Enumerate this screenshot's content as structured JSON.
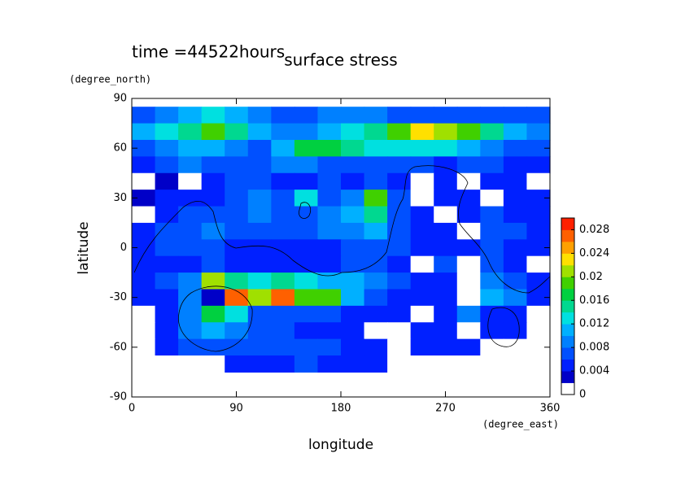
{
  "chart_data": {
    "type": "contour",
    "title": "surface stress",
    "annotation": "time =44522hours",
    "x_label": "longitude",
    "y_label": "latitude",
    "x_units": "(degree_east)",
    "y_units": "(degree_north)",
    "xlim": [
      0,
      360
    ],
    "ylim": [
      -90,
      90
    ],
    "xticks": [
      0,
      90,
      180,
      270,
      360
    ],
    "yticks": [
      90,
      60,
      30,
      0,
      -30,
      -60,
      -90
    ],
    "x": [
      10,
      30,
      50,
      70,
      90,
      110,
      130,
      150,
      170,
      190,
      210,
      230,
      250,
      270,
      290,
      310,
      330,
      350
    ],
    "y": [
      80,
      70,
      60,
      50,
      40,
      30,
      20,
      10,
      0,
      -10,
      -20,
      -30,
      -40,
      -50,
      -60,
      -70
    ],
    "z": [
      [
        0.006,
        0.008,
        0.01,
        0.012,
        0.01,
        0.008,
        0.006,
        0.006,
        0.008,
        0.008,
        0.008,
        0.006,
        0.006,
        0.006,
        0.006,
        0.006,
        0.006,
        0.006
      ],
      [
        0.01,
        0.012,
        0.014,
        0.018,
        0.014,
        0.01,
        0.008,
        0.008,
        0.01,
        0.012,
        0.014,
        0.018,
        0.022,
        0.02,
        0.018,
        0.014,
        0.01,
        0.008
      ],
      [
        0.006,
        0.008,
        0.01,
        0.01,
        0.008,
        0.006,
        0.01,
        0.016,
        0.016,
        0.014,
        0.012,
        0.012,
        0.012,
        0.012,
        0.01,
        0.008,
        0.006,
        0.006
      ],
      [
        0.004,
        0.006,
        0.008,
        0.006,
        0.006,
        0.006,
        0.008,
        0.008,
        0.006,
        0.006,
        0.006,
        0.006,
        0.006,
        0.004,
        0.006,
        0.006,
        0.004,
        0.004
      ],
      [
        0.001,
        0.003,
        0.001,
        0.004,
        0.006,
        0.006,
        0.004,
        0.004,
        0.006,
        0.004,
        0.006,
        0.004,
        0.001,
        0.004,
        0.001,
        0.004,
        0.004,
        0.001
      ],
      [
        0.003,
        0.004,
        0.004,
        0.004,
        0.006,
        0.008,
        0.006,
        0.012,
        0.006,
        0.008,
        0.018,
        0.006,
        0.001,
        0.004,
        0.004,
        0.001,
        0.004,
        0.004
      ],
      [
        0.001,
        0.004,
        0.006,
        0.006,
        0.006,
        0.008,
        0.006,
        0.006,
        0.008,
        0.01,
        0.014,
        0.006,
        0.004,
        0.001,
        0.004,
        0.006,
        0.004,
        0.004
      ],
      [
        0.004,
        0.006,
        0.006,
        0.008,
        0.006,
        0.006,
        0.006,
        0.006,
        0.008,
        0.008,
        0.01,
        0.006,
        0.004,
        0.004,
        0.001,
        0.006,
        0.006,
        0.004
      ],
      [
        0.004,
        0.006,
        0.006,
        0.006,
        0.004,
        0.004,
        0.004,
        0.004,
        0.004,
        0.006,
        0.006,
        0.006,
        0.004,
        0.004,
        0.004,
        0.006,
        0.004,
        0.004
      ],
      [
        0.004,
        0.004,
        0.004,
        0.006,
        0.004,
        0.004,
        0.004,
        0.004,
        0.004,
        0.006,
        0.006,
        0.004,
        0.001,
        0.006,
        0.001,
        0.006,
        0.004,
        0.001
      ],
      [
        0.004,
        0.006,
        0.008,
        0.02,
        0.014,
        0.012,
        0.014,
        0.012,
        0.01,
        0.01,
        0.008,
        0.006,
        0.004,
        0.004,
        0.001,
        0.008,
        0.006,
        0.004
      ],
      [
        0.004,
        0.004,
        0.008,
        0.002,
        0.026,
        0.02,
        0.026,
        0.018,
        0.018,
        0.01,
        0.006,
        0.004,
        0.004,
        0.004,
        0.001,
        0.01,
        0.008,
        0.004
      ],
      [
        0.001,
        0.004,
        0.008,
        0.016,
        0.012,
        0.006,
        0.006,
        0.006,
        0.006,
        0.004,
        0.004,
        0.004,
        0.001,
        0.004,
        0.008,
        0.004,
        0.004,
        0.001
      ],
      [
        0.001,
        0.004,
        0.008,
        0.01,
        0.008,
        0.006,
        0.006,
        0.004,
        0.004,
        0.004,
        0.001,
        0.001,
        0.004,
        0.004,
        0.001,
        0.004,
        0.004,
        0.001
      ],
      [
        0.001,
        0.004,
        0.006,
        0.006,
        0.006,
        0.006,
        0.006,
        0.006,
        0.006,
        0.004,
        0.004,
        0.001,
        0.004,
        0.004,
        0.004,
        0.001,
        0.001,
        0.001
      ],
      [
        0.001,
        0.001,
        0.001,
        0.001,
        0.004,
        0.004,
        0.004,
        0.006,
        0.004,
        0.004,
        0.004,
        0.001,
        0.001,
        0.001,
        0.001,
        0.001,
        0.001,
        0.001
      ]
    ],
    "colorbar": {
      "lim": [
        0,
        0.03
      ],
      "ticks": [
        0,
        0.004,
        0.008,
        0.012,
        0.016,
        0.02,
        0.024,
        0.028
      ],
      "colors": [
        "#ffffff",
        "#0000c8",
        "#0020ff",
        "#0050ff",
        "#0080ff",
        "#00b0ff",
        "#00e0e0",
        "#00d890",
        "#00d040",
        "#40d000",
        "#a0e000",
        "#ffe000",
        "#ffa000",
        "#ff6000",
        "#ff2000"
      ]
    }
  }
}
